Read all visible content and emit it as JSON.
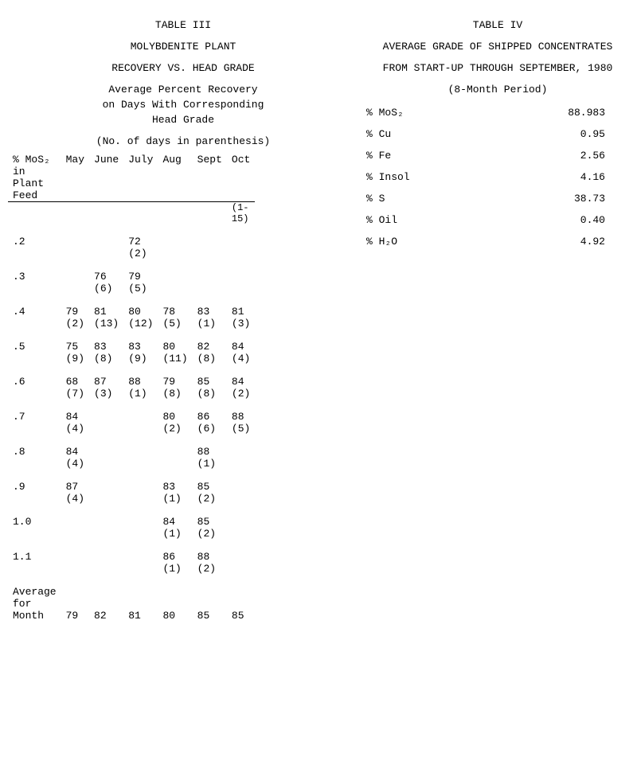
{
  "table3": {
    "table_no": "TABLE III",
    "title1": "MOLYBDENITE PLANT",
    "title2": "RECOVERY VS. HEAD GRADE",
    "subtitle1": "Average Percent Recovery",
    "subtitle2": "on Days With Corresponding",
    "subtitle3": "Head Grade",
    "paren_note": "(No. of days in parenthesis)",
    "rowhead_l1": "% MoS₂",
    "rowhead_l2": "in",
    "rowhead_l3": "Plant",
    "rowhead_l4": "Feed",
    "months": [
      "May",
      "June",
      "July",
      "Aug",
      "Sept",
      "Oct"
    ],
    "oct_note": "(1-15)",
    "grades": [
      ".2",
      ".3",
      ".4",
      ".5",
      ".6",
      ".7",
      ".8",
      ".9",
      "1.0",
      "1.1"
    ],
    "cells": {
      ".2": {
        "July": {
          "v": "72",
          "d": "(2)"
        }
      },
      ".3": {
        "June": {
          "v": "76",
          "d": "(6)"
        },
        "July": {
          "v": "79",
          "d": "(5)"
        }
      },
      ".4": {
        "May": {
          "v": "79",
          "d": "(2)"
        },
        "June": {
          "v": "81",
          "d": "(13)"
        },
        "July": {
          "v": "80",
          "d": "(12)"
        },
        "Aug": {
          "v": "78",
          "d": "(5)"
        },
        "Sept": {
          "v": "83",
          "d": "(1)"
        },
        "Oct": {
          "v": "81",
          "d": "(3)"
        }
      },
      ".5": {
        "May": {
          "v": "75",
          "d": "(9)"
        },
        "June": {
          "v": "83",
          "d": "(8)"
        },
        "July": {
          "v": "83",
          "d": "(9)"
        },
        "Aug": {
          "v": "80",
          "d": "(11)"
        },
        "Sept": {
          "v": "82",
          "d": "(8)"
        },
        "Oct": {
          "v": "84",
          "d": "(4)"
        }
      },
      ".6": {
        "May": {
          "v": "68",
          "d": "(7)"
        },
        "June": {
          "v": "87",
          "d": "(3)"
        },
        "July": {
          "v": "88",
          "d": "(1)"
        },
        "Aug": {
          "v": "79",
          "d": "(8)"
        },
        "Sept": {
          "v": "85",
          "d": "(8)"
        },
        "Oct": {
          "v": "84",
          "d": "(2)"
        }
      },
      ".7": {
        "May": {
          "v": "84",
          "d": "(4)"
        },
        "Aug": {
          "v": "80",
          "d": "(2)"
        },
        "Sept": {
          "v": "86",
          "d": "(6)"
        },
        "Oct": {
          "v": "88",
          "d": "(5)"
        }
      },
      ".8": {
        "May": {
          "v": "84",
          "d": "(4)"
        },
        "Sept": {
          "v": "88",
          "d": "(1)"
        }
      },
      ".9": {
        "May": {
          "v": "87",
          "d": "(4)"
        },
        "Aug": {
          "v": "83",
          "d": "(1)"
        },
        "Sept": {
          "v": "85",
          "d": "(2)"
        }
      },
      "1.0": {
        "Aug": {
          "v": "84",
          "d": "(1)"
        },
        "Sept": {
          "v": "85",
          "d": "(2)"
        }
      },
      "1.1": {
        "Aug": {
          "v": "86",
          "d": "(1)"
        },
        "Sept": {
          "v": "88",
          "d": "(2)"
        }
      }
    },
    "avg_label_l1": "Average",
    "avg_label_l2": "for",
    "avg_label_l3": "Month",
    "avg": {
      "May": "79",
      "June": "82",
      "July": "81",
      "Aug": "80",
      "Sept": "85",
      "Oct": "85"
    }
  },
  "table4": {
    "table_no": "TABLE IV",
    "title1": "AVERAGE GRADE OF SHIPPED CONCENTRATES",
    "title2": "FROM START-UP THROUGH SEPTEMBER, 1980",
    "subtitle": "(8-Month Period)",
    "rows": [
      {
        "label": "% MoS₂",
        "value": "88.983"
      },
      {
        "label": "% Cu",
        "value": "0.95"
      },
      {
        "label": "% Fe",
        "value": "2.56"
      },
      {
        "label": "% Insol",
        "value": "4.16"
      },
      {
        "label": "% S",
        "value": "38.73"
      },
      {
        "label": "% Oil",
        "value": "0.40"
      },
      {
        "label": "% H₂O",
        "value": "4.92"
      }
    ]
  },
  "style": {
    "font_family": "Courier New",
    "font_size_pt": 10,
    "text_color": "#000000",
    "background_color": "#ffffff",
    "header_underline_color": "#000000"
  }
}
